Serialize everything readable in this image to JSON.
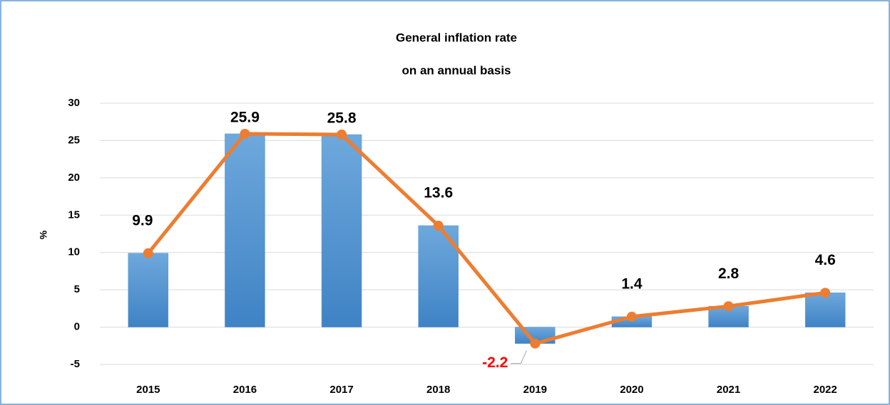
{
  "chart_data": {
    "type": "bar",
    "title": "General inflation rate",
    "subtitle": "on an annual basis",
    "y_label": "%",
    "categories": [
      "2015",
      "2016",
      "2017",
      "2018",
      "2019",
      "2020",
      "2021",
      "2022"
    ],
    "values": [
      9.9,
      25.9,
      25.8,
      13.6,
      -2.2,
      1.4,
      2.8,
      4.6
    ],
    "bar_color": "#5b9bd5",
    "line_color": "#ed7d31",
    "negative_label_color": "#ff0000",
    "ylim": [
      -5,
      30
    ],
    "yticks": [
      -5,
      0,
      5,
      10,
      15,
      20,
      25,
      30
    ],
    "grid": true
  }
}
